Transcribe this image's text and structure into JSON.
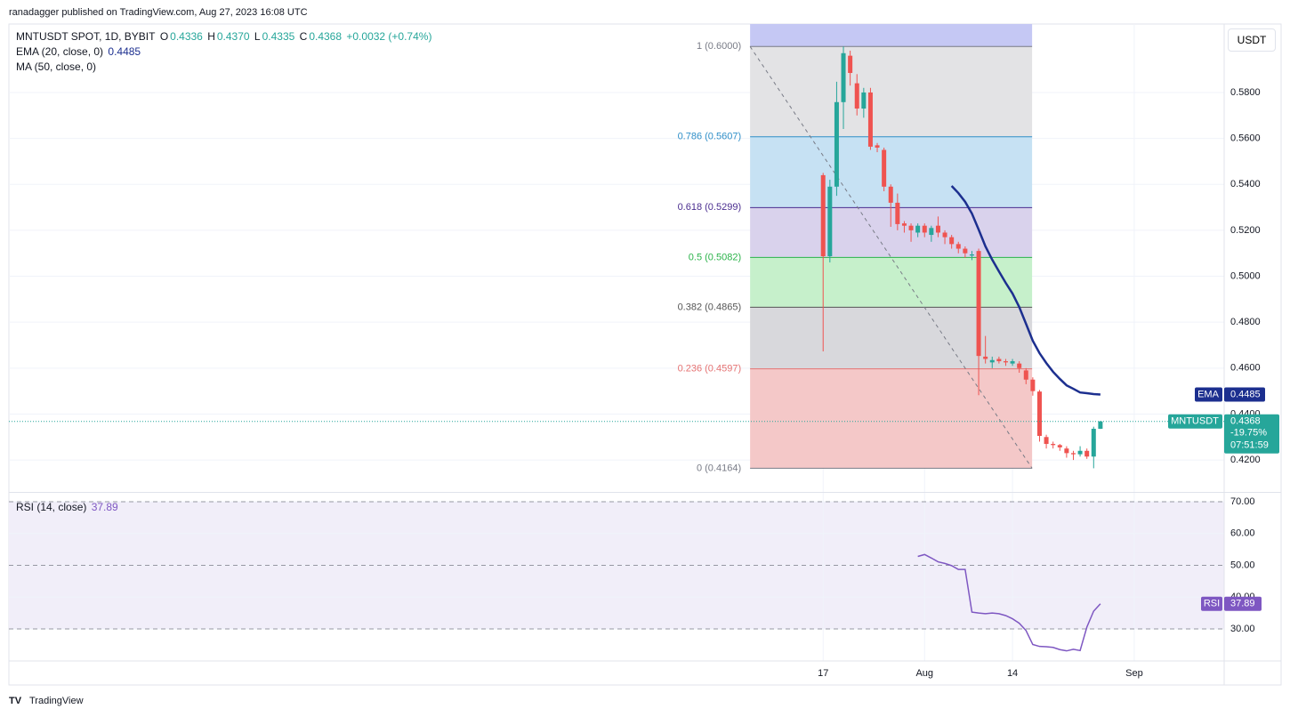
{
  "header": {
    "byline": "ranadagger published on TradingView.com, Aug 27, 2023 16:08 UTC",
    "logo": "TradingView"
  },
  "chart_data": [
    {
      "type": "candlestick",
      "title": "MNTUSDT SPOT, 1D, BYBIT",
      "currency": "USDT",
      "symbol": "MNTUSDT",
      "legend": {
        "open_label": "O",
        "open": "0.4336",
        "high_label": "H",
        "high": "0.4370",
        "low_label": "L",
        "low": "0.4335",
        "close_label": "C",
        "close": "0.4368",
        "change": "+0.0032 (+0.74%)"
      },
      "change_pct": "-19.75%",
      "countdown": "07:51:59",
      "ma_legend": "MA (50, close, 0)",
      "up_color": "#26a69a",
      "down_color": "#ef5350",
      "x": [
        0,
        1,
        2,
        3,
        4,
        5,
        6,
        7,
        8,
        9,
        10,
        11,
        12,
        13,
        14,
        15,
        16,
        17,
        18,
        19,
        20,
        21,
        22,
        23,
        24,
        25,
        26,
        27,
        28,
        29,
        30,
        31,
        32,
        33,
        34,
        35,
        36,
        37,
        38,
        39,
        40,
        41
      ],
      "open": [
        0.544,
        0.5087,
        0.539,
        0.5758,
        0.596,
        0.584,
        0.573,
        0.58,
        0.557,
        0.555,
        0.539,
        0.532,
        0.523,
        0.522,
        0.519,
        0.522,
        0.518,
        0.522,
        0.519,
        0.517,
        0.514,
        0.512,
        0.509,
        0.511,
        0.465,
        0.4625,
        0.464,
        0.463,
        0.462,
        0.462,
        0.459,
        0.455,
        0.4498,
        0.43,
        0.427,
        0.4265,
        0.425,
        0.423,
        0.4225,
        0.424,
        0.4215,
        0.4336
      ],
      "high": [
        0.545,
        0.542,
        0.5847,
        0.6,
        0.5982,
        0.588,
        0.582,
        0.582,
        0.558,
        0.556,
        0.54,
        0.536,
        0.524,
        0.523,
        0.523,
        0.523,
        0.522,
        0.526,
        0.52,
        0.518,
        0.515,
        0.513,
        0.511,
        0.512,
        0.474,
        0.465,
        0.465,
        0.464,
        0.464,
        0.463,
        0.46,
        0.456,
        0.4505,
        0.431,
        0.428,
        0.427,
        0.426,
        0.424,
        0.426,
        0.425,
        0.4345,
        0.437
      ],
      "low": [
        0.4673,
        0.506,
        0.535,
        0.5641,
        0.583,
        0.57,
        0.569,
        0.555,
        0.554,
        0.537,
        0.5215,
        0.52,
        0.519,
        0.515,
        0.517,
        0.517,
        0.515,
        0.517,
        0.514,
        0.512,
        0.51,
        0.508,
        0.507,
        0.4482,
        0.462,
        0.46,
        0.462,
        0.461,
        0.461,
        0.458,
        0.453,
        0.448,
        0.428,
        0.425,
        0.425,
        0.424,
        0.421,
        0.42,
        0.4215,
        0.4205,
        0.4164,
        0.4335
      ],
      "close": [
        0.5087,
        0.539,
        0.5758,
        0.5971,
        0.5885,
        0.573,
        0.58,
        0.5564,
        0.556,
        0.539,
        0.532,
        0.5227,
        0.522,
        0.52,
        0.522,
        0.519,
        0.521,
        0.519,
        0.517,
        0.514,
        0.512,
        0.51,
        0.5095,
        0.4653,
        0.464,
        0.4635,
        0.463,
        0.4625,
        0.463,
        0.46,
        0.455,
        0.45,
        0.4305,
        0.427,
        0.4265,
        0.4255,
        0.423,
        0.4225,
        0.424,
        0.4215,
        0.4336,
        0.4368
      ],
      "series": [
        {
          "name": "EMA (20, close, 0)",
          "tag": "EMA",
          "color": "#1c2f8f",
          "values": [
            null,
            null,
            null,
            null,
            null,
            null,
            null,
            null,
            null,
            null,
            null,
            null,
            null,
            null,
            null,
            null,
            null,
            null,
            null,
            0.5393,
            0.5362,
            0.5324,
            0.5273,
            0.5203,
            0.513,
            0.5072,
            0.5021,
            0.4971,
            0.4925,
            0.4866,
            0.4793,
            0.4719,
            0.4665,
            0.4622,
            0.4584,
            0.4553,
            0.4525,
            0.451,
            0.4494,
            0.4491,
            0.4487,
            0.4485
          ]
        }
      ],
      "fib": {
        "x": [
          -10.8,
          30.9
        ],
        "levels": [
          {
            "label": "1 (0.6000)",
            "value": 0.6,
            "color": "#787b86",
            "zone": "#e3e3e5"
          },
          {
            "label": "0.786 (0.5607)",
            "value": 0.5607,
            "color": "#2f8fc8",
            "zone": "#c6e1f3"
          },
          {
            "label": "0.618 (0.5299)",
            "value": 0.5299,
            "color": "#4a2d8f",
            "zone": "#d9d2ec"
          },
          {
            "label": "0.5 (0.5082)",
            "value": 0.5082,
            "color": "#2bb34a",
            "zone": "#c6f0cb"
          },
          {
            "label": "0.382 (0.4865)",
            "value": 0.4865,
            "color": "#555555",
            "zone": "#d8d8dc"
          },
          {
            "label": "0.236 (0.4597)",
            "value": 0.4597,
            "color": "#e57373",
            "zone": "#f4c8c8"
          },
          {
            "label": "0 (0.4164)",
            "value": 0.4164,
            "color": "#787b86",
            "zone": null
          }
        ]
      },
      "xlim": [
        -120.4,
        59.3
      ],
      "xticks": [
        {
          "value": 0,
          "label": "17"
        },
        {
          "value": 15,
          "label": "Aug"
        },
        {
          "value": 28,
          "label": "14"
        },
        {
          "value": 46,
          "label": "Sep"
        }
      ],
      "ylim": [
        0.4061,
        0.6098
      ],
      "yticks": [
        {
          "value": 0.42,
          "label": "0.4200"
        },
        {
          "value": 0.44,
          "label": "0.4400"
        },
        {
          "value": 0.46,
          "label": "0.4600"
        },
        {
          "value": 0.48,
          "label": "0.4800"
        },
        {
          "value": 0.5,
          "label": "0.5000"
        },
        {
          "value": 0.52,
          "label": "0.5200"
        },
        {
          "value": 0.54,
          "label": "0.5400"
        },
        {
          "value": 0.56,
          "label": "0.5600"
        },
        {
          "value": 0.58,
          "label": "0.5800"
        }
      ],
      "grid": true
    },
    {
      "type": "line",
      "title": "RSI (14, close)",
      "series": [
        {
          "name": "RSI",
          "color": "#7e57c2",
          "values": [
            null,
            null,
            null,
            null,
            null,
            null,
            null,
            null,
            null,
            null,
            null,
            null,
            null,
            null,
            52.8,
            53.4,
            52.3,
            51.1,
            50.6,
            49.9,
            48.7,
            48.7,
            35.3,
            35.0,
            34.8,
            35.0,
            34.8,
            34.2,
            33.2,
            31.8,
            29.5,
            25.1,
            24.5,
            24.4,
            24.2,
            23.5,
            23.1,
            23.6,
            23.2,
            30.6,
            35.6,
            37.89
          ]
        }
      ],
      "ylim": [
        19.93,
        72.8
      ],
      "yticks": [
        {
          "value": 30,
          "label": "30.00"
        },
        {
          "value": 40,
          "label": "40.00"
        },
        {
          "value": 50,
          "label": "50.00"
        },
        {
          "value": 60,
          "label": "60.00"
        },
        {
          "value": 70,
          "label": "70.00"
        }
      ],
      "bands": {
        "upper": 70,
        "middle": 50,
        "lower": 30
      },
      "band_color": "#f1eef9"
    }
  ]
}
